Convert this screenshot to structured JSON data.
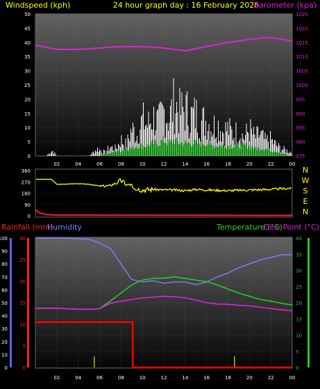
{
  "header": {
    "windspeed_label": "Windspeed (kph)",
    "title": "24 hour graph day : 16 February 2026",
    "barometer_label": "Barometer (kpa)"
  },
  "colors": {
    "wind": "#ffffff",
    "wind_avg": "#22dd22",
    "barometer": "#dd22dd",
    "direction": "#ffff00",
    "rain_rate": "#ff2020",
    "humidity": "#8080ff",
    "temperature": "#22cc22",
    "dewpoint": "#dd22dd",
    "rainfall": "#ff0000",
    "rain_marks": "#bbbb00"
  },
  "chart_data": [
    {
      "type": "line",
      "name": "wind-barometer",
      "x_ticks": [
        "02",
        "04",
        "06",
        "08",
        "10",
        "12",
        "14",
        "16",
        "18",
        "20",
        "22",
        "00"
      ],
      "y_left_ticks": [
        "0",
        "5",
        "10",
        "15",
        "20",
        "25",
        "30",
        "35",
        "40",
        "45",
        "50"
      ],
      "y_right_ticks": [
        "975",
        "980",
        "985",
        "990",
        "995",
        "1000",
        "1005",
        "1010",
        "1015",
        "1020",
        "1025"
      ],
      "ylim_left": [
        0,
        50
      ],
      "ylim_right": [
        975,
        1025
      ],
      "ylabel_left": "Windspeed (kph)",
      "ylabel_right": "Barometer (kpa)",
      "barometer": {
        "x": [
          0,
          2,
          4,
          6,
          8,
          10,
          12,
          14,
          16,
          18,
          20,
          21.5,
          22.5,
          24
        ],
        "values": [
          1014,
          1012.5,
          1012.5,
          1013,
          1013.5,
          1013.5,
          1013,
          1012,
          1013.5,
          1015,
          1016,
          1016.7,
          1016.4,
          1015.5
        ]
      },
      "wind_gust_envelope": {
        "x": [
          0,
          1,
          1.6,
          2,
          5,
          5.8,
          6.5,
          7,
          7.5,
          8,
          8.5,
          9,
          9.5,
          10,
          10.5,
          11,
          11.5,
          12,
          12.5,
          13,
          13.5,
          14,
          14.5,
          15,
          15.5,
          16,
          16.5,
          17,
          17.5,
          18,
          18.5,
          19,
          19.5,
          20,
          20.5,
          21,
          21.5,
          22,
          22.5,
          23,
          23.5,
          24
        ],
        "values": [
          0,
          0,
          3,
          0,
          0,
          4,
          2,
          5,
          4,
          9,
          6,
          15,
          12,
          20,
          17,
          22,
          18,
          25,
          21,
          30,
          24,
          26,
          22,
          23,
          19,
          20,
          16,
          18,
          14,
          15,
          12,
          14,
          10,
          15,
          10,
          12,
          8,
          9,
          6,
          4,
          3,
          2
        ]
      },
      "wind_avg": {
        "x": [
          0,
          5.8,
          6.5,
          7,
          7.5,
          8,
          8.5,
          9,
          9.5,
          10,
          10.5,
          11,
          11.5,
          12,
          12.5,
          13,
          13.5,
          14,
          14.5,
          15,
          15.5,
          16,
          16.5,
          17,
          17.5,
          18,
          18.5,
          19,
          19.5,
          20,
          20.5,
          21,
          21.5,
          22,
          22.5,
          23,
          24
        ],
        "values": [
          0,
          0,
          1,
          1,
          2,
          2,
          3,
          3,
          4,
          4,
          4,
          5,
          5,
          6,
          5,
          6,
          5,
          5,
          5,
          5,
          5,
          5,
          4,
          4,
          4,
          4,
          4,
          4,
          4,
          4,
          3,
          3,
          3,
          2,
          2,
          1,
          0
        ]
      }
    },
    {
      "type": "line",
      "name": "wind-direction",
      "y_ticks": [
        "360",
        "270",
        "180",
        "90",
        "0"
      ],
      "side_labels": [
        "N",
        "W",
        "S",
        "E",
        "N"
      ],
      "ylim": [
        0,
        360
      ],
      "direction": {
        "x": [
          0,
          1.5,
          2,
          4,
          5,
          5.8,
          6.2,
          7,
          8,
          8.5,
          9,
          9.5,
          10,
          11,
          12,
          13,
          14,
          15,
          16,
          18,
          20,
          22,
          23,
          24
        ],
        "values": [
          290,
          290,
          250,
          255,
          250,
          240,
          235,
          240,
          280,
          250,
          230,
          215,
          205,
          210,
          205,
          205,
          200,
          210,
          205,
          200,
          205,
          210,
          215,
          220
        ]
      },
      "rain_rate": {
        "x": [
          0,
          0.3,
          0.6,
          1,
          2,
          24
        ],
        "values": [
          50,
          25,
          18,
          10,
          5,
          3
        ]
      }
    },
    {
      "type": "line",
      "name": "rain-humidity-temperature",
      "header_left": [
        "Rainfall (mm)",
        "Humidity"
      ],
      "header_right": [
        "Temperature (°C)",
        "Dew Point (°C)"
      ],
      "x_ticks": [
        "02",
        "04",
        "06",
        "08",
        "10",
        "12",
        "14",
        "16",
        "18",
        "20",
        "22",
        "00"
      ],
      "humidity_ticks": [
        "0",
        "10",
        "20",
        "30",
        "40",
        "50",
        "60",
        "70",
        "80",
        "90",
        "100"
      ],
      "rainfall_ticks": [
        "0",
        "5",
        "10",
        "15",
        "20",
        "25",
        "30"
      ],
      "temp_ticks": [
        "0",
        "5",
        "10",
        "15",
        "20",
        "25",
        "30",
        "35",
        "40"
      ],
      "ylim_humidity": [
        0,
        100
      ],
      "ylim_rainfall": [
        0,
        30
      ],
      "ylim_temp": [
        0,
        40
      ],
      "humidity": {
        "x": [
          0,
          3,
          5,
          6,
          7,
          7.5,
          8,
          8.5,
          9,
          10,
          11,
          12,
          13,
          14,
          15,
          16,
          17,
          18,
          19,
          20,
          21,
          22,
          23,
          24
        ],
        "values": [
          100,
          100,
          99,
          96,
          92,
          86,
          80,
          74,
          68,
          66,
          67,
          65,
          66,
          66,
          64,
          66,
          70,
          73,
          77,
          80,
          83,
          85,
          87,
          87
        ]
      },
      "temperature": {
        "x": [
          0,
          2,
          4,
          5.5,
          6,
          7,
          8,
          9,
          10,
          11,
          12,
          13,
          14,
          15,
          16,
          17,
          18,
          19,
          20,
          21,
          22,
          23,
          24
        ],
        "values": [
          18.3,
          18.3,
          18,
          18,
          18.2,
          20.5,
          23,
          25.5,
          27,
          27.5,
          27.6,
          28,
          27.5,
          27,
          26.5,
          25.5,
          24.2,
          23,
          22,
          21,
          20.5,
          19.8,
          19.3
        ]
      },
      "dewpoint": {
        "x": [
          0,
          2,
          4,
          5.5,
          6,
          7,
          8,
          9,
          10,
          11,
          12,
          13,
          14,
          15,
          16,
          17,
          18,
          19,
          20,
          21,
          22,
          23,
          24
        ],
        "values": [
          18.3,
          18.3,
          18,
          18,
          18.2,
          19.8,
          20.5,
          21,
          21.5,
          21.7,
          22,
          21.8,
          21.5,
          20.8,
          20,
          19.6,
          19.5,
          19.2,
          19,
          18.6,
          18.2,
          17.8,
          17.5
        ]
      },
      "rainfall": {
        "x": [
          0,
          9.1,
          9.1,
          24
        ],
        "values": [
          10.5,
          10.5,
          0,
          0
        ]
      },
      "rain_marks_x": [
        5.5,
        18.6
      ]
    }
  ]
}
